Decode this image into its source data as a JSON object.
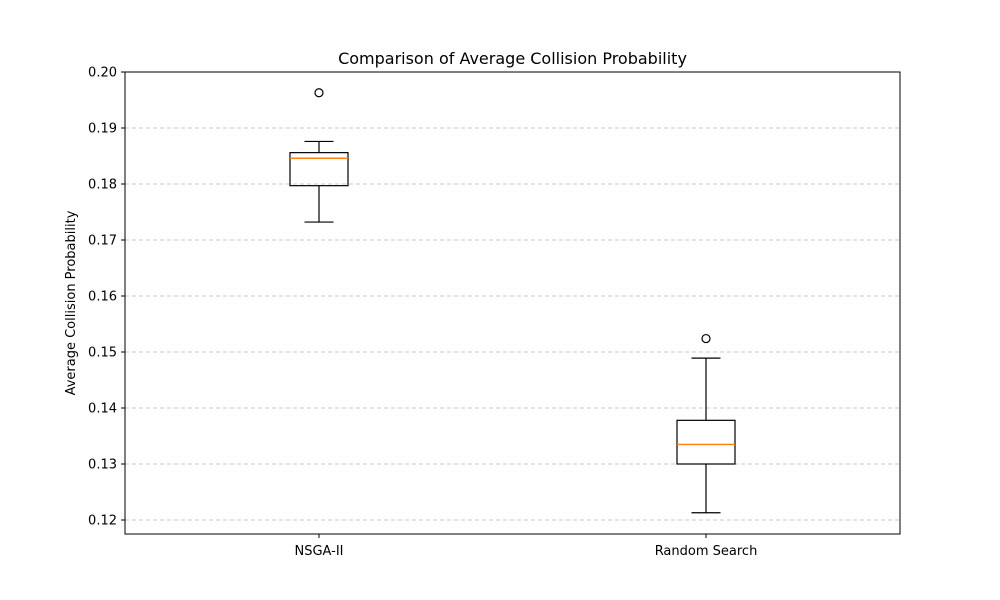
{
  "chart_data": {
    "type": "box",
    "title": "Comparison of Average Collision Probability",
    "xlabel": "",
    "ylabel": "Average Collision Probability",
    "ylim": [
      0.1175,
      0.2
    ],
    "yticks": [
      0.12,
      0.13,
      0.14,
      0.15,
      0.16,
      0.17,
      0.18,
      0.19,
      0.2
    ],
    "ytick_labels": [
      "0.12",
      "0.13",
      "0.14",
      "0.15",
      "0.16",
      "0.17",
      "0.18",
      "0.19",
      "0.20"
    ],
    "grid": "y-dashed",
    "categories": [
      "NSGA-II",
      "Random Search"
    ],
    "boxes": [
      {
        "whisker_low": 0.1732,
        "q1": 0.1797,
        "median": 0.1846,
        "q3": 0.1856,
        "whisker_high": 0.1876,
        "outliers": [
          0.1963
        ]
      },
      {
        "whisker_low": 0.1213,
        "q1": 0.13,
        "median": 0.1335,
        "q3": 0.1378,
        "whisker_high": 0.1489,
        "outliers": [
          0.1524
        ]
      }
    ],
    "colors": {
      "box": "#000000",
      "median": "#ff7f0e",
      "grid": "#c8c8c8",
      "background": "#ffffff"
    }
  }
}
